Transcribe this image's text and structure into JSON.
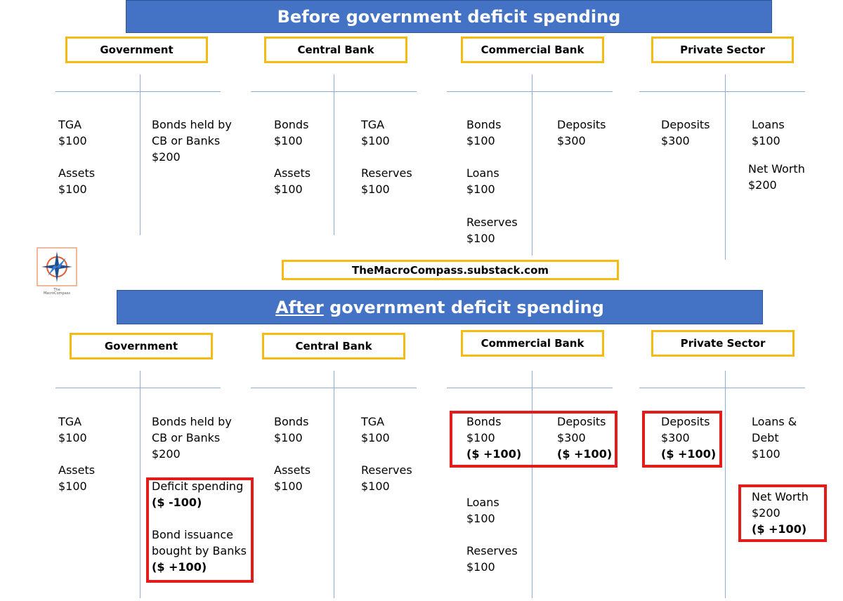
{
  "before": {
    "title": "Before government deficit spending",
    "government": {
      "header": "Government",
      "tga_label": "TGA",
      "tga_value": "$100",
      "assets_label": "Assets",
      "assets_value": "$100",
      "bonds_label": "Bonds held by\nCB or Banks",
      "bonds_value": "$200"
    },
    "central_bank": {
      "header": "Central Bank",
      "bonds_label": "Bonds",
      "bonds_value": "$100",
      "assets_label": "Assets",
      "assets_value": "$100",
      "tga_label": "TGA",
      "tga_value": "$100",
      "reserves_label": "Reserves",
      "reserves_value": "$100"
    },
    "commercial_bank": {
      "header": "Commercial Bank",
      "bonds_label": "Bonds",
      "bonds_value": "$100",
      "loans_label": "Loans",
      "loans_value": "$100",
      "reserves_label": "Reserves",
      "reserves_value": "$100",
      "deposits_label": "Deposits",
      "deposits_value": "$300"
    },
    "private_sector": {
      "header": "Private Sector",
      "deposits_label": "Deposits",
      "deposits_value": "$300",
      "loans_label": "Loans",
      "loans_value": "$100",
      "networth_label": "Net Worth",
      "networth_value": "$200"
    }
  },
  "watermark": "TheMacroCompass.substack.com",
  "logo": {
    "icon": "compass-star-icon",
    "text": "The\nMacroCompass"
  },
  "after": {
    "title_emph": "After",
    "title_rest": " government deficit spending",
    "government": {
      "header": "Government",
      "tga_label": "TGA",
      "tga_value": "$100",
      "assets_label": "Assets",
      "assets_value": "$100",
      "bonds_label": "Bonds held by\nCB or Banks",
      "bonds_value": "$200",
      "deficit_label": "Deficit spending",
      "deficit_change": "($ -100)",
      "issuance_label": "Bond issuance\nbought by Banks",
      "issuance_change": "($ +100)"
    },
    "central_bank": {
      "header": "Central Bank",
      "bonds_label": "Bonds",
      "bonds_value": "$100",
      "assets_label": "Assets",
      "assets_value": "$100",
      "tga_label": "TGA",
      "tga_value": "$100",
      "reserves_label": "Reserves",
      "reserves_value": "$100"
    },
    "commercial_bank": {
      "header": "Commercial Bank",
      "bonds_label": "Bonds",
      "bonds_value": "$100",
      "bonds_change": "($ +100)",
      "deposits_label": "Deposits",
      "deposits_value": "$300",
      "deposits_change": "($ +100)",
      "loans_label": "Loans",
      "loans_value": "$100",
      "reserves_label": "Reserves",
      "reserves_value": "$100"
    },
    "private_sector": {
      "header": "Private Sector",
      "deposits_label": "Deposits",
      "deposits_value": "$300",
      "deposits_change": "($ +100)",
      "loans_label": "Loans &\nDebt",
      "loans_value": "$100",
      "networth_label": "Net Worth",
      "networth_value": "$200",
      "networth_change": "($ +100)"
    }
  },
  "colors": {
    "banner": "#4472C4",
    "header_border": "#F5BA14",
    "t_account_line": "#8FAADC",
    "highlight_border": "#E31B1B"
  }
}
